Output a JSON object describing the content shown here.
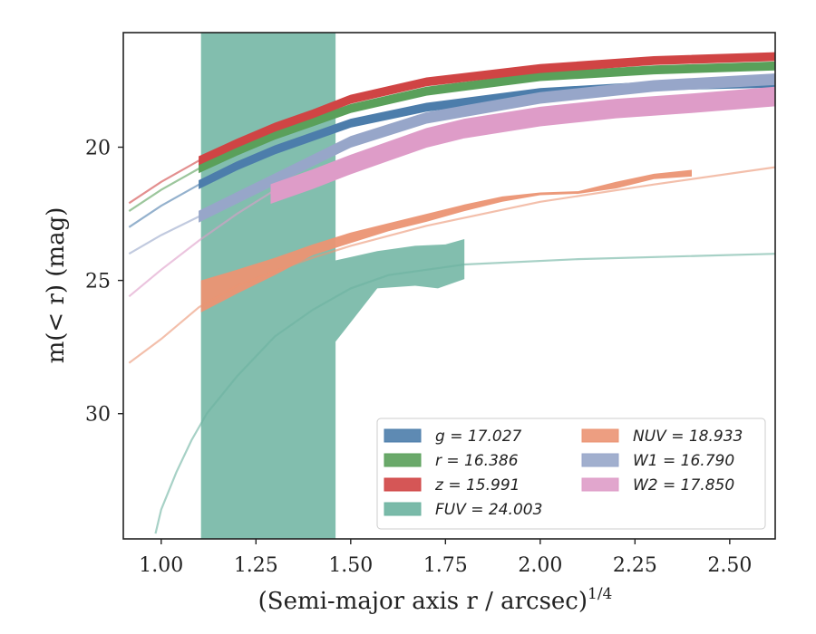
{
  "chart_data": {
    "type": "line",
    "xlabel": "(Semi-major axis r / arcsec)",
    "xlabel_exponent": "1/4",
    "ylabel": "m(< r) (mag)",
    "xlim": [
      0.9,
      2.62
    ],
    "ylim": [
      34.7,
      15.7
    ],
    "y_inverted": true,
    "x_ticks": [
      1.0,
      1.25,
      1.5,
      1.75,
      2.0,
      2.25,
      2.5
    ],
    "x_tick_labels": [
      "1.00",
      "1.25",
      "1.50",
      "1.75",
      "2.00",
      "2.25",
      "2.50"
    ],
    "y_ticks": [
      20,
      25,
      30
    ],
    "y_tick_labels": [
      "20",
      "25",
      "30"
    ],
    "grid": false,
    "legend_placement": "bottom-right",
    "series": [
      {
        "name": "g = 17.027",
        "label_var": "g",
        "label_value": "17.027",
        "color": "#4c7dab",
        "extrap": [
          [
            0.915,
            23.0
          ],
          [
            1.0,
            22.2
          ],
          [
            1.1,
            21.4
          ],
          [
            1.2,
            20.7
          ],
          [
            1.3,
            20.1
          ],
          [
            1.4,
            19.6
          ],
          [
            1.5,
            19.1
          ],
          [
            1.7,
            18.5
          ],
          [
            2.0,
            17.95
          ],
          [
            2.3,
            17.7
          ],
          [
            2.62,
            17.6
          ]
        ],
        "band": [
          [
            1.1,
            21.4
          ],
          [
            1.2,
            20.7
          ],
          [
            1.3,
            20.1
          ],
          [
            1.4,
            19.6
          ],
          [
            1.5,
            19.1
          ],
          [
            1.7,
            18.5
          ],
          [
            2.0,
            17.95
          ],
          [
            2.3,
            17.7
          ],
          [
            2.62,
            17.6
          ]
        ],
        "band_width": 0.15
      },
      {
        "name": "r = 16.386",
        "label_var": "r",
        "label_value": "16.386",
        "color": "#5aa05a",
        "extrap": [
          [
            0.915,
            22.4
          ],
          [
            1.0,
            21.6
          ],
          [
            1.1,
            20.8
          ],
          [
            1.2,
            20.15
          ],
          [
            1.3,
            19.55
          ],
          [
            1.4,
            19.05
          ],
          [
            1.5,
            18.55
          ],
          [
            1.7,
            17.9
          ],
          [
            2.0,
            17.35
          ],
          [
            2.3,
            17.1
          ],
          [
            2.62,
            16.95
          ]
        ],
        "band": [
          [
            1.1,
            20.8
          ],
          [
            1.2,
            20.15
          ],
          [
            1.3,
            19.55
          ],
          [
            1.4,
            19.05
          ],
          [
            1.5,
            18.55
          ],
          [
            1.7,
            17.9
          ],
          [
            2.0,
            17.35
          ],
          [
            2.3,
            17.1
          ],
          [
            2.62,
            16.95
          ]
        ],
        "band_width": 0.15
      },
      {
        "name": "z = 15.991",
        "label_var": "z",
        "label_value": "15.991",
        "color": "#d04444",
        "extrap": [
          [
            0.915,
            22.1
          ],
          [
            1.0,
            21.3
          ],
          [
            1.1,
            20.5
          ],
          [
            1.2,
            19.85
          ],
          [
            1.3,
            19.25
          ],
          [
            1.4,
            18.75
          ],
          [
            1.5,
            18.2
          ],
          [
            1.7,
            17.55
          ],
          [
            2.0,
            17.05
          ],
          [
            2.3,
            16.75
          ],
          [
            2.62,
            16.6
          ]
        ],
        "band": [
          [
            1.1,
            20.5
          ],
          [
            1.2,
            19.85
          ],
          [
            1.3,
            19.25
          ],
          [
            1.4,
            18.75
          ],
          [
            1.5,
            18.2
          ],
          [
            1.7,
            17.55
          ],
          [
            2.0,
            17.05
          ],
          [
            2.3,
            16.75
          ],
          [
            2.62,
            16.6
          ]
        ],
        "band_width": 0.15
      },
      {
        "name": "FUV = 24.003",
        "label_var": "FUV",
        "label_value": "24.003",
        "color": "#6cb3a0",
        "extrap": [
          [
            0.985,
            34.5
          ],
          [
            1.0,
            33.6
          ],
          [
            1.04,
            32.2
          ],
          [
            1.08,
            31.0
          ],
          [
            1.12,
            30.0
          ],
          [
            1.2,
            28.6
          ],
          [
            1.3,
            27.1
          ],
          [
            1.4,
            26.1
          ],
          [
            1.5,
            25.3
          ],
          [
            1.6,
            24.8
          ],
          [
            1.8,
            24.4
          ],
          [
            2.1,
            24.2
          ],
          [
            2.62,
            24.0
          ]
        ],
        "band_upper": [
          [
            1.105,
            15.7
          ],
          [
            1.46,
            15.7
          ],
          [
            1.46,
            24.25
          ],
          [
            1.57,
            23.9
          ],
          [
            1.67,
            23.7
          ],
          [
            1.75,
            23.65
          ],
          [
            1.8,
            23.45
          ]
        ],
        "band_lower": [
          [
            1.8,
            24.95
          ],
          [
            1.73,
            25.3
          ],
          [
            1.67,
            25.2
          ],
          [
            1.57,
            25.3
          ],
          [
            1.46,
            27.3
          ],
          [
            1.46,
            34.7
          ],
          [
            1.105,
            34.7
          ]
        ]
      },
      {
        "name": "NUV = 18.933",
        "label_var": "NUV",
        "label_value": "18.933",
        "color": "#eb9473",
        "extrap": [
          [
            0.915,
            28.1
          ],
          [
            1.0,
            27.2
          ],
          [
            1.05,
            26.6
          ],
          [
            1.1,
            26.0
          ],
          [
            1.2,
            25.2
          ],
          [
            1.3,
            24.65
          ],
          [
            1.4,
            24.15
          ],
          [
            1.5,
            23.7
          ],
          [
            1.7,
            22.95
          ],
          [
            2.0,
            22.05
          ],
          [
            2.3,
            21.4
          ],
          [
            2.62,
            20.75
          ]
        ],
        "band_upper": [
          [
            1.105,
            25.0
          ],
          [
            1.2,
            24.6
          ],
          [
            1.3,
            24.15
          ],
          [
            1.4,
            23.65
          ],
          [
            1.5,
            23.2
          ],
          [
            1.6,
            22.85
          ],
          [
            1.7,
            22.5
          ],
          [
            1.8,
            22.15
          ],
          [
            1.9,
            21.85
          ],
          [
            2.0,
            21.7
          ],
          [
            2.1,
            21.65
          ],
          [
            2.2,
            21.3
          ],
          [
            2.3,
            21.0
          ],
          [
            2.4,
            20.85
          ]
        ],
        "band_lower": [
          [
            2.4,
            21.1
          ],
          [
            2.3,
            21.2
          ],
          [
            2.2,
            21.55
          ],
          [
            2.1,
            21.75
          ],
          [
            2.0,
            21.8
          ],
          [
            1.9,
            22.05
          ],
          [
            1.8,
            22.4
          ],
          [
            1.7,
            22.8
          ],
          [
            1.6,
            23.15
          ],
          [
            1.5,
            23.6
          ],
          [
            1.4,
            24.05
          ],
          [
            1.3,
            24.8
          ],
          [
            1.2,
            25.5
          ],
          [
            1.105,
            26.2
          ]
        ]
      },
      {
        "name": "W1 = 16.790",
        "label_var": "W1",
        "label_value": "16.790",
        "color": "#97a6c9",
        "extrap": [
          [
            0.915,
            24.0
          ],
          [
            1.0,
            23.3
          ],
          [
            1.1,
            22.6
          ],
          [
            1.2,
            21.9
          ],
          [
            1.3,
            21.2
          ],
          [
            1.4,
            20.5
          ],
          [
            1.5,
            19.8
          ],
          [
            1.7,
            18.9
          ],
          [
            2.0,
            18.15
          ],
          [
            2.3,
            17.7
          ],
          [
            2.62,
            17.45
          ]
        ],
        "band": [
          [
            1.1,
            22.6
          ],
          [
            1.2,
            21.9
          ],
          [
            1.3,
            21.2
          ],
          [
            1.4,
            20.5
          ],
          [
            1.5,
            19.8
          ],
          [
            1.7,
            18.9
          ],
          [
            2.0,
            18.15
          ],
          [
            2.3,
            17.7
          ],
          [
            2.62,
            17.45
          ]
        ],
        "band_width": 0.2
      },
      {
        "name": "W2 = 17.850",
        "label_var": "W2",
        "label_value": "17.850",
        "color": "#de9cc8",
        "extrap": [
          [
            0.915,
            25.6
          ],
          [
            1.0,
            24.6
          ],
          [
            1.1,
            23.5
          ],
          [
            1.2,
            22.5
          ],
          [
            1.29,
            21.7
          ],
          [
            1.4,
            21.15
          ],
          [
            1.5,
            20.65
          ],
          [
            1.7,
            19.65
          ],
          [
            2.0,
            18.8
          ],
          [
            2.3,
            18.45
          ],
          [
            2.62,
            18.05
          ]
        ],
        "band": [
          [
            1.29,
            21.75
          ],
          [
            1.4,
            21.2
          ],
          [
            1.5,
            20.65
          ],
          [
            1.6,
            20.15
          ],
          [
            1.7,
            19.65
          ],
          [
            1.8,
            19.3
          ],
          [
            2.0,
            18.85
          ],
          [
            2.2,
            18.55
          ],
          [
            2.4,
            18.35
          ],
          [
            2.62,
            18.1
          ]
        ],
        "band_width": 0.35
      }
    ],
    "legend_columns": [
      [
        "g = 17.027",
        "r = 16.386",
        "z = 15.991",
        "FUV = 24.003"
      ],
      [
        "NUV = 18.933",
        "W1 = 16.790",
        "W2 = 17.850"
      ]
    ]
  }
}
